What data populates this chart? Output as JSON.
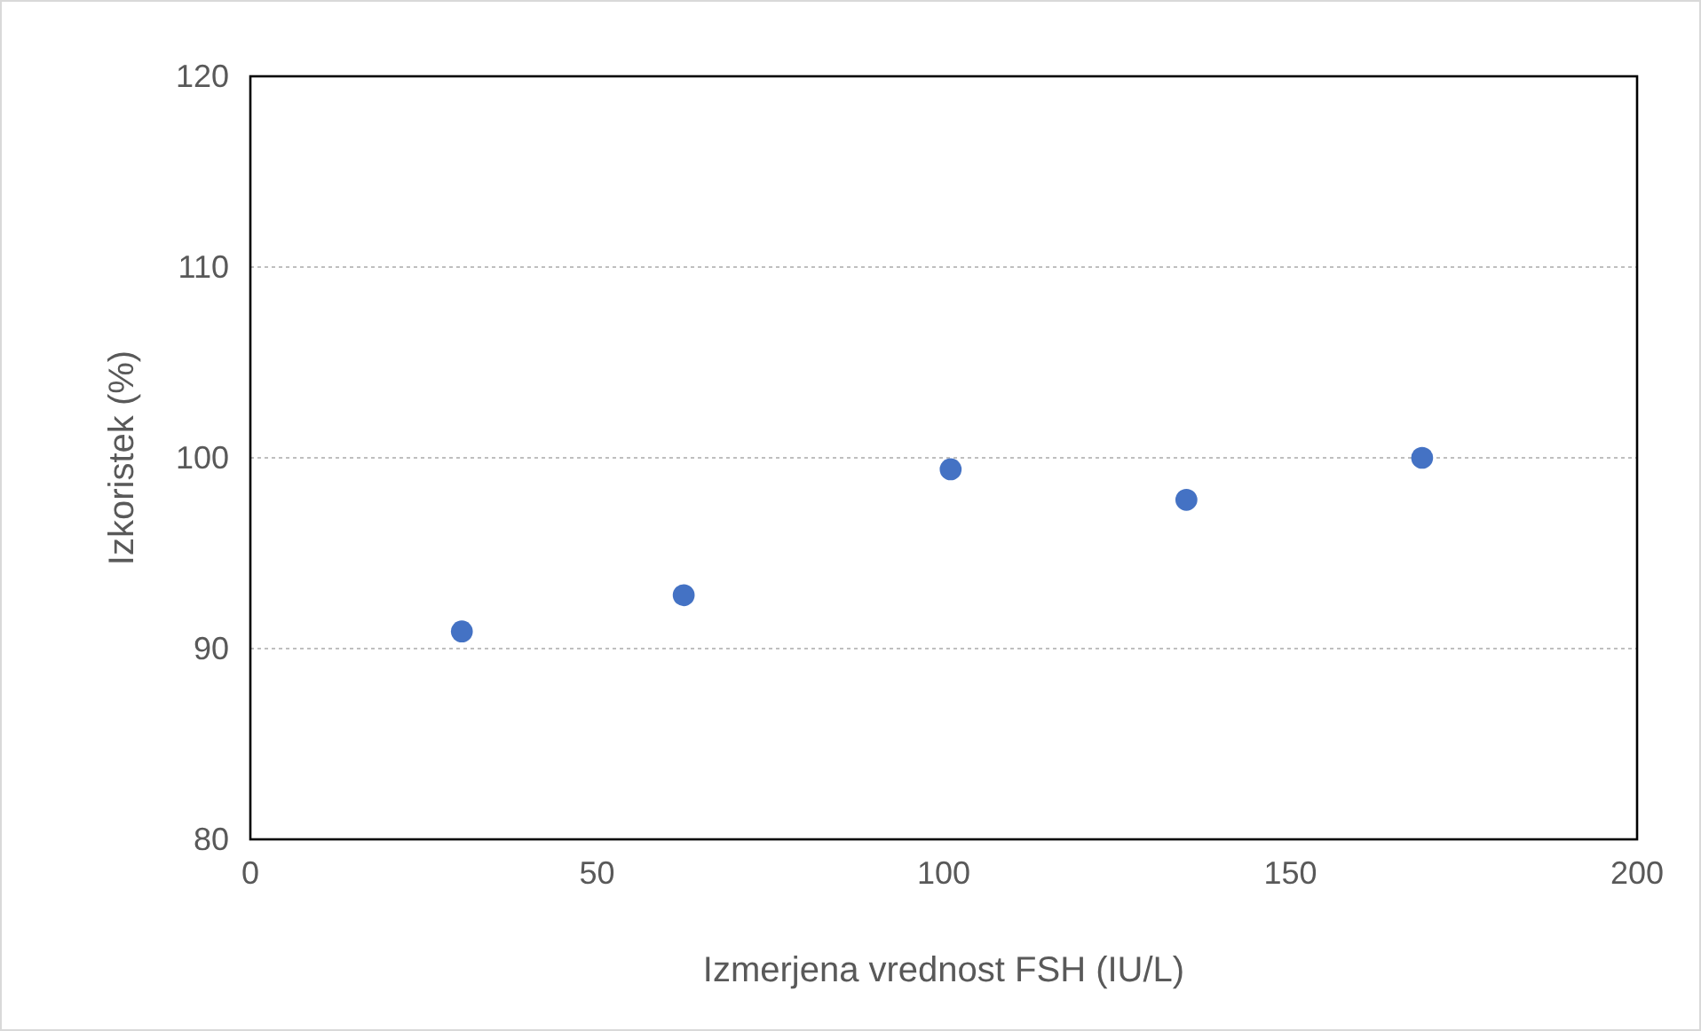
{
  "chart_data": {
    "type": "scatter",
    "xlabel": "Izmerjena vrednost FSH (IU/L)",
    "ylabel": "Izkoristek (%)",
    "x": [
      30.5,
      62.5,
      101,
      135,
      169
    ],
    "series": [
      {
        "color": "#4472c4",
        "values": [
          90.9,
          92.8,
          99.4,
          97.8,
          100.0
        ]
      }
    ],
    "xlim": [
      0,
      200
    ],
    "xticks": [
      0,
      50,
      100,
      150,
      200
    ],
    "ylim": [
      80,
      120
    ],
    "yticks": [
      80,
      90,
      100,
      110,
      120
    ],
    "grid": "y",
    "marker": "circle"
  }
}
